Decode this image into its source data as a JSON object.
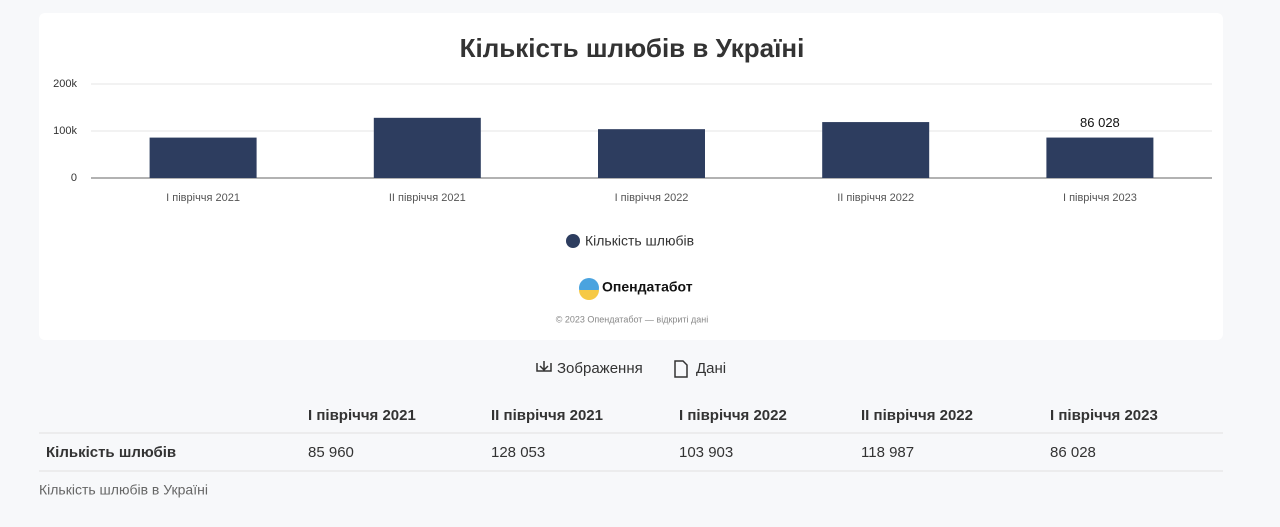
{
  "chart_data": {
    "type": "bar",
    "title": "Кількість шлюбів в Україні",
    "categories": [
      "I півріччя 2021",
      "II півріччя 2021",
      "I півріччя 2022",
      "II півріччя 2022",
      "I півріччя 2023"
    ],
    "series": [
      {
        "name": "Кількість шлюбів",
        "color": "#2d3d5f",
        "values": [
          85960,
          128053,
          103903,
          118987,
          86028
        ],
        "value_labels": [
          null,
          null,
          null,
          null,
          "86 028"
        ]
      }
    ],
    "ylim": [
      0,
      200000
    ],
    "yticks": [
      0,
      {
        "value": 100000,
        "label": "100k"
      },
      {
        "value": 200000,
        "label": "200k"
      }
    ],
    "grid": true,
    "legend": "bottom"
  },
  "branding": {
    "logo": "Опендатабот",
    "copyright": "© 2023 Опендатабот — відкриті дані"
  },
  "buttons": [
    "Зображення",
    "Дані"
  ],
  "table": {
    "header": [
      "I півріччя 2021",
      "II півріччя 2021",
      "I півріччя 2022",
      "II півріччя 2022",
      "I півріччя 2023"
    ],
    "rows": [
      [
        "Кількість шлюбів",
        "85 960",
        "128 053",
        "103 903",
        "118 987",
        "86 028"
      ]
    ]
  },
  "caption": "Кількість шлюбів в Україні"
}
